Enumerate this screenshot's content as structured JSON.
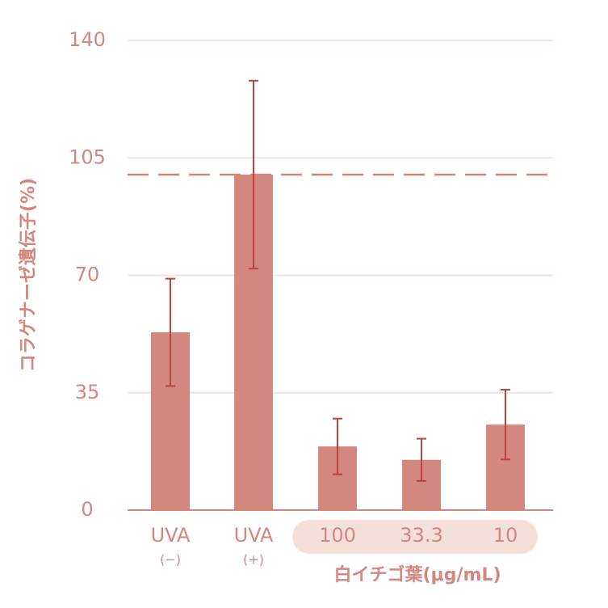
{
  "chart_data": {
    "type": "bar",
    "y_label": "コラゲナーゼ遺伝子(%)",
    "categories": [
      "UVA",
      "UVA",
      "100",
      "33.3",
      "10"
    ],
    "category_sublabels": [
      "(−)",
      "(+)",
      null,
      null,
      null
    ],
    "group_label": "白イチゴ葉(μg/mL)",
    "values": [
      53,
      100,
      19,
      15,
      25.5
    ],
    "errors": [
      16,
      28,
      8.3,
      6.3,
      10.4
    ],
    "color": "#d4877e",
    "error_color": "#b5453f",
    "reference_line": 100,
    "ylim": [
      0,
      140
    ],
    "yticks": [
      0,
      35,
      70,
      105,
      140
    ],
    "grid": true
  }
}
